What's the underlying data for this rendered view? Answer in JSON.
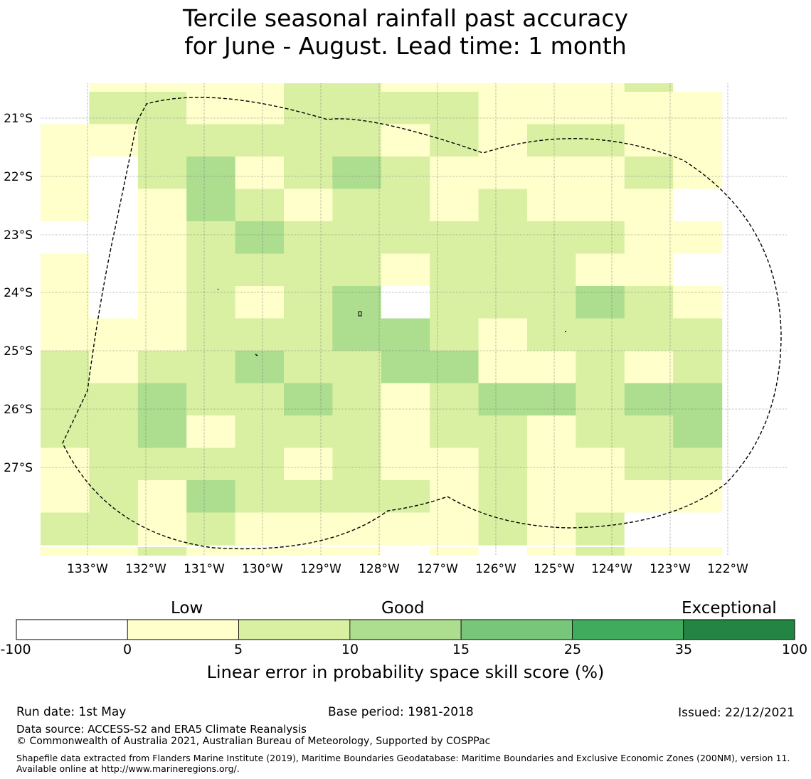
{
  "title": {
    "line1": "Tercile seasonal rainfall past accuracy",
    "line2": "for June - August. Lead time: 1 month"
  },
  "map": {
    "lat_labels": [
      "21°S",
      "22°S",
      "23°S",
      "24°S",
      "25°S",
      "26°S",
      "27°S"
    ],
    "lon_labels": [
      "133°W",
      "132°W",
      "131°W",
      "130°W",
      "129°W",
      "128°W",
      "127°W",
      "126°W",
      "125°W",
      "124°W",
      "123°W",
      "122°W"
    ],
    "boundary_style": "dashed",
    "gridlines": true,
    "grid_rows_categories": [
      "WYYYYLLYYYYYLW",
      "WLLYYLLLLYYYYY",
      "YYLLLLLYLYLLYY",
      "YWLMYLMLYYYYLY",
      "YWYMLYLLYLYYYW",
      "WWYLMLLLLLLLYY",
      "YWYLLLLYLLLYYW",
      "YWYLYLMWLLLMLY",
      "YYYLLLMMLYLLLL",
      "LYLLMLLMMYYLYL",
      "LLMLLMLYLMMLMM",
      "LLMYLLLYLLYLLM",
      "YLLLLYLYYLYYLL",
      "YLYMLLLLYLYYYY",
      "LLYLYYYYYLYLWW",
      "YYLYYYYWYWYLYY"
    ]
  },
  "colorbar": {
    "categories": [
      "Low",
      "Good",
      "Exceptional"
    ],
    "ticks": [
      "-100",
      "0",
      "5",
      "10",
      "15",
      "25",
      "35",
      "100"
    ],
    "colors": [
      "#ffffff",
      "#ffffcc",
      "#d9f0a3",
      "#addd8e",
      "#78c679",
      "#41ab5d",
      "#238443"
    ],
    "label": "Linear error in probability space skill score (%)"
  },
  "legend_key": {
    "W": "#ffffff",
    "Y": "#ffffcc",
    "L": "#d9f0a3",
    "M": "#addd8e"
  },
  "footer": {
    "run_date": "Run date: 1st May",
    "base_period": "Base period: 1981-2018",
    "issued": "Issued: 22/12/2021",
    "data_source": "Data source: ACCESS-S2 and ERA5 Climate Reanalysis",
    "copyright": "© Commonwealth of Australia 2021, Australian Bureau of Meteorology, Supported by COSPPac",
    "shapefile": "Shapefile data extracted from Flanders Marine Institute (2019), Maritime Boundaries Geodatabase: Maritime Boundaries and Exclusive Economic Zones (200NM), version 11. Available online at http://www.marineregions.org/."
  }
}
